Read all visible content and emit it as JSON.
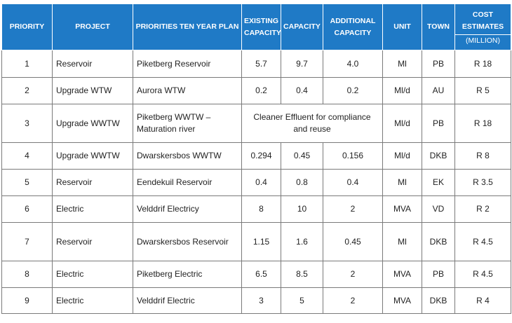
{
  "header": {
    "priority": "PRIORITY",
    "project": "PROJECT",
    "plan": "PRIORITIES TEN YEAR PLAN",
    "existing": "EXISTING CAPACITY",
    "capacity": "CAPACITY",
    "additional": "ADDITIONAL CAPACITY",
    "unit": "UNIT",
    "town": "TOWN",
    "cost": "COST ESTIMATES",
    "cost_unit": "(MILLION)"
  },
  "rows": [
    {
      "priority": "1",
      "project": "Reservoir",
      "plan": "Piketberg Reservoir",
      "existing": "5.7",
      "capacity": "9.7",
      "additional": "4.0",
      "unit": "Ml",
      "town": "PB",
      "cost": "R 18"
    },
    {
      "priority": "2",
      "project": "Upgrade WTW",
      "plan": "Aurora WTW",
      "existing": "0.2",
      "capacity": "0.4",
      "additional": "0.2",
      "unit": "Ml/d",
      "town": "AU",
      "cost": "R 5"
    },
    {
      "priority": "3",
      "project": "Upgrade WWTW",
      "plan": "Piketberg WWTW – Maturation river",
      "merged": "Cleaner Effluent for compliance and reuse",
      "unit": "Ml/d",
      "town": "PB",
      "cost": "R 18"
    },
    {
      "priority": "4",
      "project": "Upgrade WWTW",
      "plan": "Dwarskersbos WWTW",
      "existing": "0.294",
      "capacity": "0.45",
      "additional": "0.156",
      "unit": "Ml/d",
      "town": "DKB",
      "cost": "R 8"
    },
    {
      "priority": "5",
      "project": "Reservoir",
      "plan": "Eendekuil Reservoir",
      "existing": "0.4",
      "capacity": "0.8",
      "additional": "0.4",
      "unit": "Ml",
      "town": "EK",
      "cost": "R 3.5"
    },
    {
      "priority": "6",
      "project": "Electric",
      "plan": "Velddrif Electricy",
      "existing": "8",
      "capacity": "10",
      "additional": "2",
      "unit": "MVA",
      "town": "VD",
      "cost": "R 2"
    },
    {
      "priority": "7",
      "project": "Reservoir",
      "plan": "Dwarskersbos Reservoir",
      "existing": "1.15",
      "capacity": "1.6",
      "additional": "0.45",
      "unit": "Ml",
      "town": "DKB",
      "cost": "R 4.5"
    },
    {
      "priority": "8",
      "project": "Electric",
      "plan": "Piketberg Electric",
      "existing": "6.5",
      "capacity": "8.5",
      "additional": "2",
      "unit": "MVA",
      "town": "PB",
      "cost": "R 4.5"
    },
    {
      "priority": "9",
      "project": "Electric",
      "plan": "Velddrif Electric",
      "existing": "3",
      "capacity": "5",
      "additional": "2",
      "unit": "MVA",
      "town": "DKB",
      "cost": "R 4"
    }
  ],
  "colors": {
    "header_bg": "#1F7AC6",
    "header_text": "#FFFFFF",
    "border": "#7A7A7A"
  }
}
